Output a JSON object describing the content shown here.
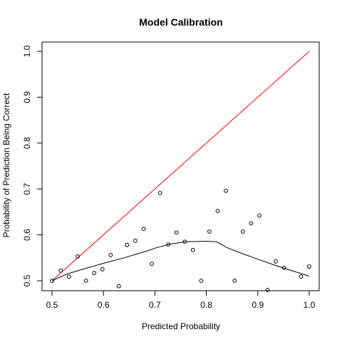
{
  "chart_data": {
    "type": "scatter",
    "title": "Model Calibration",
    "xlabel": "Predicted Probability",
    "ylabel": "Probability of Prediction Being Correct",
    "xlim": [
      0.5,
      1.0
    ],
    "ylim": [
      0.5,
      1.0
    ],
    "x_ticks": [
      "0.5",
      "0.6",
      "0.7",
      "0.8",
      "0.9",
      "1.0"
    ],
    "y_ticks": [
      "0.5",
      "0.6",
      "0.7",
      "0.8",
      "0.9",
      "1.0"
    ],
    "grid": false,
    "legend": "none",
    "points": [
      {
        "x": 0.5,
        "y": 0.5
      },
      {
        "x": 0.517,
        "y": 0.522
      },
      {
        "x": 0.533,
        "y": 0.509
      },
      {
        "x": 0.55,
        "y": 0.553
      },
      {
        "x": 0.566,
        "y": 0.5
      },
      {
        "x": 0.582,
        "y": 0.517
      },
      {
        "x": 0.598,
        "y": 0.525
      },
      {
        "x": 0.614,
        "y": 0.556
      },
      {
        "x": 0.63,
        "y": 0.488
      },
      {
        "x": 0.646,
        "y": 0.578
      },
      {
        "x": 0.662,
        "y": 0.587
      },
      {
        "x": 0.678,
        "y": 0.613
      },
      {
        "x": 0.694,
        "y": 0.537
      },
      {
        "x": 0.71,
        "y": 0.691
      },
      {
        "x": 0.726,
        "y": 0.579
      },
      {
        "x": 0.742,
        "y": 0.605
      },
      {
        "x": 0.758,
        "y": 0.585
      },
      {
        "x": 0.774,
        "y": 0.567
      },
      {
        "x": 0.79,
        "y": 0.5
      },
      {
        "x": 0.806,
        "y": 0.607
      },
      {
        "x": 0.822,
        "y": 0.652
      },
      {
        "x": 0.838,
        "y": 0.696
      },
      {
        "x": 0.855,
        "y": 0.5
      },
      {
        "x": 0.871,
        "y": 0.607
      },
      {
        "x": 0.887,
        "y": 0.625
      },
      {
        "x": 0.903,
        "y": 0.642
      },
      {
        "x": 0.919,
        "y": 0.48
      },
      {
        "x": 0.935,
        "y": 0.542
      },
      {
        "x": 0.951,
        "y": 0.528
      },
      {
        "x": 0.984,
        "y": 0.509
      },
      {
        "x": 1.0,
        "y": 0.531
      }
    ],
    "reference_line": {
      "x": [
        0.5,
        1.0
      ],
      "y": [
        0.5,
        1.0
      ],
      "color": "#ff0000"
    },
    "smooth_curve": {
      "color": "#000000",
      "x": [
        0.5,
        0.53,
        0.56,
        0.6,
        0.64,
        0.68,
        0.7,
        0.73,
        0.76,
        0.8,
        0.82,
        0.84,
        0.87,
        0.9,
        0.93,
        0.96,
        1.0
      ],
      "y": [
        0.5,
        0.515,
        0.525,
        0.538,
        0.55,
        0.563,
        0.571,
        0.58,
        0.585,
        0.586,
        0.585,
        0.572,
        0.559,
        0.547,
        0.535,
        0.524,
        0.51
      ]
    },
    "point_color": "#000000"
  }
}
